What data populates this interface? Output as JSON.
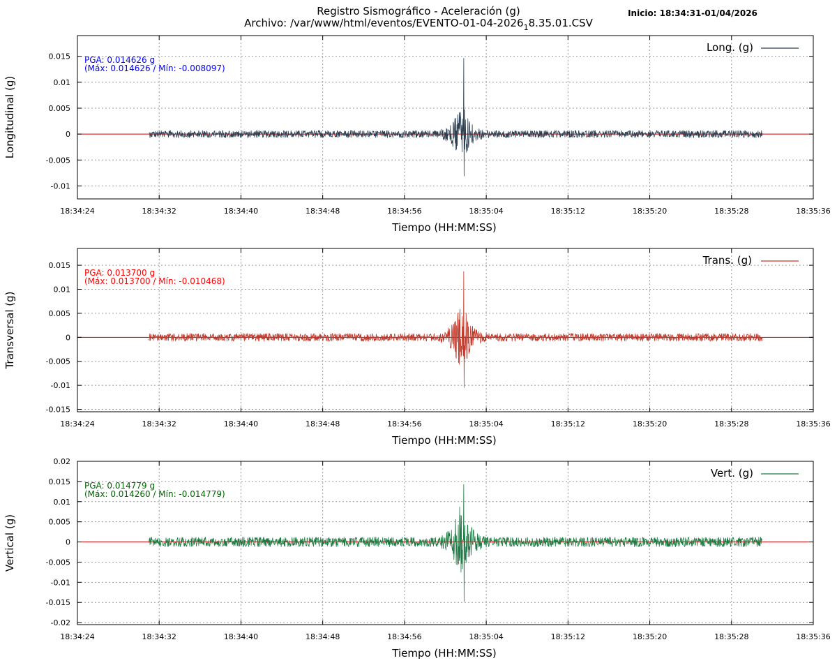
{
  "header": {
    "title_line1": "Registro Sismográfico - Aceleración (g)",
    "title_line2_main": "Archivo: /var/www/html/eventos/EVENTO-01-04-2026",
    "title_line2_sub": "1",
    "title_line2_tail": "8.35.01.CSV",
    "start_label": "Inicio: 18:34:31-01/04/2026"
  },
  "colors": {
    "long": "#2c3e50",
    "trans": "#c0392b",
    "vert": "#1e7b45",
    "zero_line": "#cc0000",
    "grid": "#999999"
  },
  "chart_data": [
    {
      "type": "line",
      "key": "long",
      "ylabel": "Longitudinal (g)",
      "xlabel": "Tiempo (HH:MM:SS)",
      "legend": "Long. (g)",
      "legend_position": "top-right",
      "pga_text": "PGA: 0.014626 g",
      "maxmin_text": "(Máx: 0.014626 / Mín: -0.008097)",
      "pga_max": 0.014626,
      "pga_min": -0.008097,
      "ylim": [
        -0.0125,
        0.019
      ],
      "yticks": [
        "0.015",
        "0.01",
        "0.005",
        "0",
        "-0.005",
        "-0.01"
      ],
      "ytick_values": [
        0.015,
        0.01,
        0.005,
        0,
        -0.005,
        -0.01
      ],
      "noise_amplitude": 0.0007,
      "grid": true
    },
    {
      "type": "line",
      "key": "trans",
      "ylabel": "Transversal (g)",
      "xlabel": "Tiempo (HH:MM:SS)",
      "legend": "Trans. (g)",
      "legend_position": "top-right",
      "pga_text": "PGA: 0.013700 g",
      "maxmin_text": "(Máx: 0.013700 / Mín: -0.010468)",
      "pga_max": 0.0137,
      "pga_min": -0.010468,
      "ylim": [
        -0.0155,
        0.0185
      ],
      "yticks": [
        "0.015",
        "0.01",
        "0.005",
        "0",
        "-0.005",
        "-0.01",
        "-0.015"
      ],
      "ytick_values": [
        0.015,
        0.01,
        0.005,
        0,
        -0.005,
        -0.01,
        -0.015
      ],
      "noise_amplitude": 0.0008,
      "grid": true
    },
    {
      "type": "line",
      "key": "vert",
      "ylabel": "Vertical (g)",
      "xlabel": "Tiempo (HH:MM:SS)",
      "legend": "Vert. (g)",
      "legend_position": "top-right",
      "pga_text": "PGA: 0.014779 g",
      "maxmin_text": "(Máx: 0.014260 / Mín: -0.014779)",
      "pga_max": 0.01426,
      "pga_min": -0.014779,
      "ylim": [
        -0.0205,
        0.02
      ],
      "yticks": [
        "0.02",
        "0.015",
        "0.01",
        "0.005",
        "0",
        "-0.005",
        "-0.01",
        "-0.015",
        "-0.02"
      ],
      "ytick_values": [
        0.02,
        0.015,
        0.01,
        0.005,
        0,
        -0.005,
        -0.01,
        -0.015,
        -0.02
      ],
      "noise_amplitude": 0.0012,
      "grid": true
    }
  ],
  "x_axis": {
    "xlim_seconds_since_1834": [
      24,
      96
    ],
    "ticks": [
      "18:34:24",
      "18:34:32",
      "18:34:40",
      "18:34:48",
      "18:34:56",
      "18:35:04",
      "18:35:12",
      "18:35:20",
      "18:35:28",
      "18:35:36"
    ],
    "tick_seconds": [
      24,
      32,
      40,
      48,
      56,
      64,
      72,
      80,
      88,
      96
    ],
    "record_start_seconds": 31,
    "record_end_seconds": 91,
    "event_peak_seconds": 61.8
  }
}
